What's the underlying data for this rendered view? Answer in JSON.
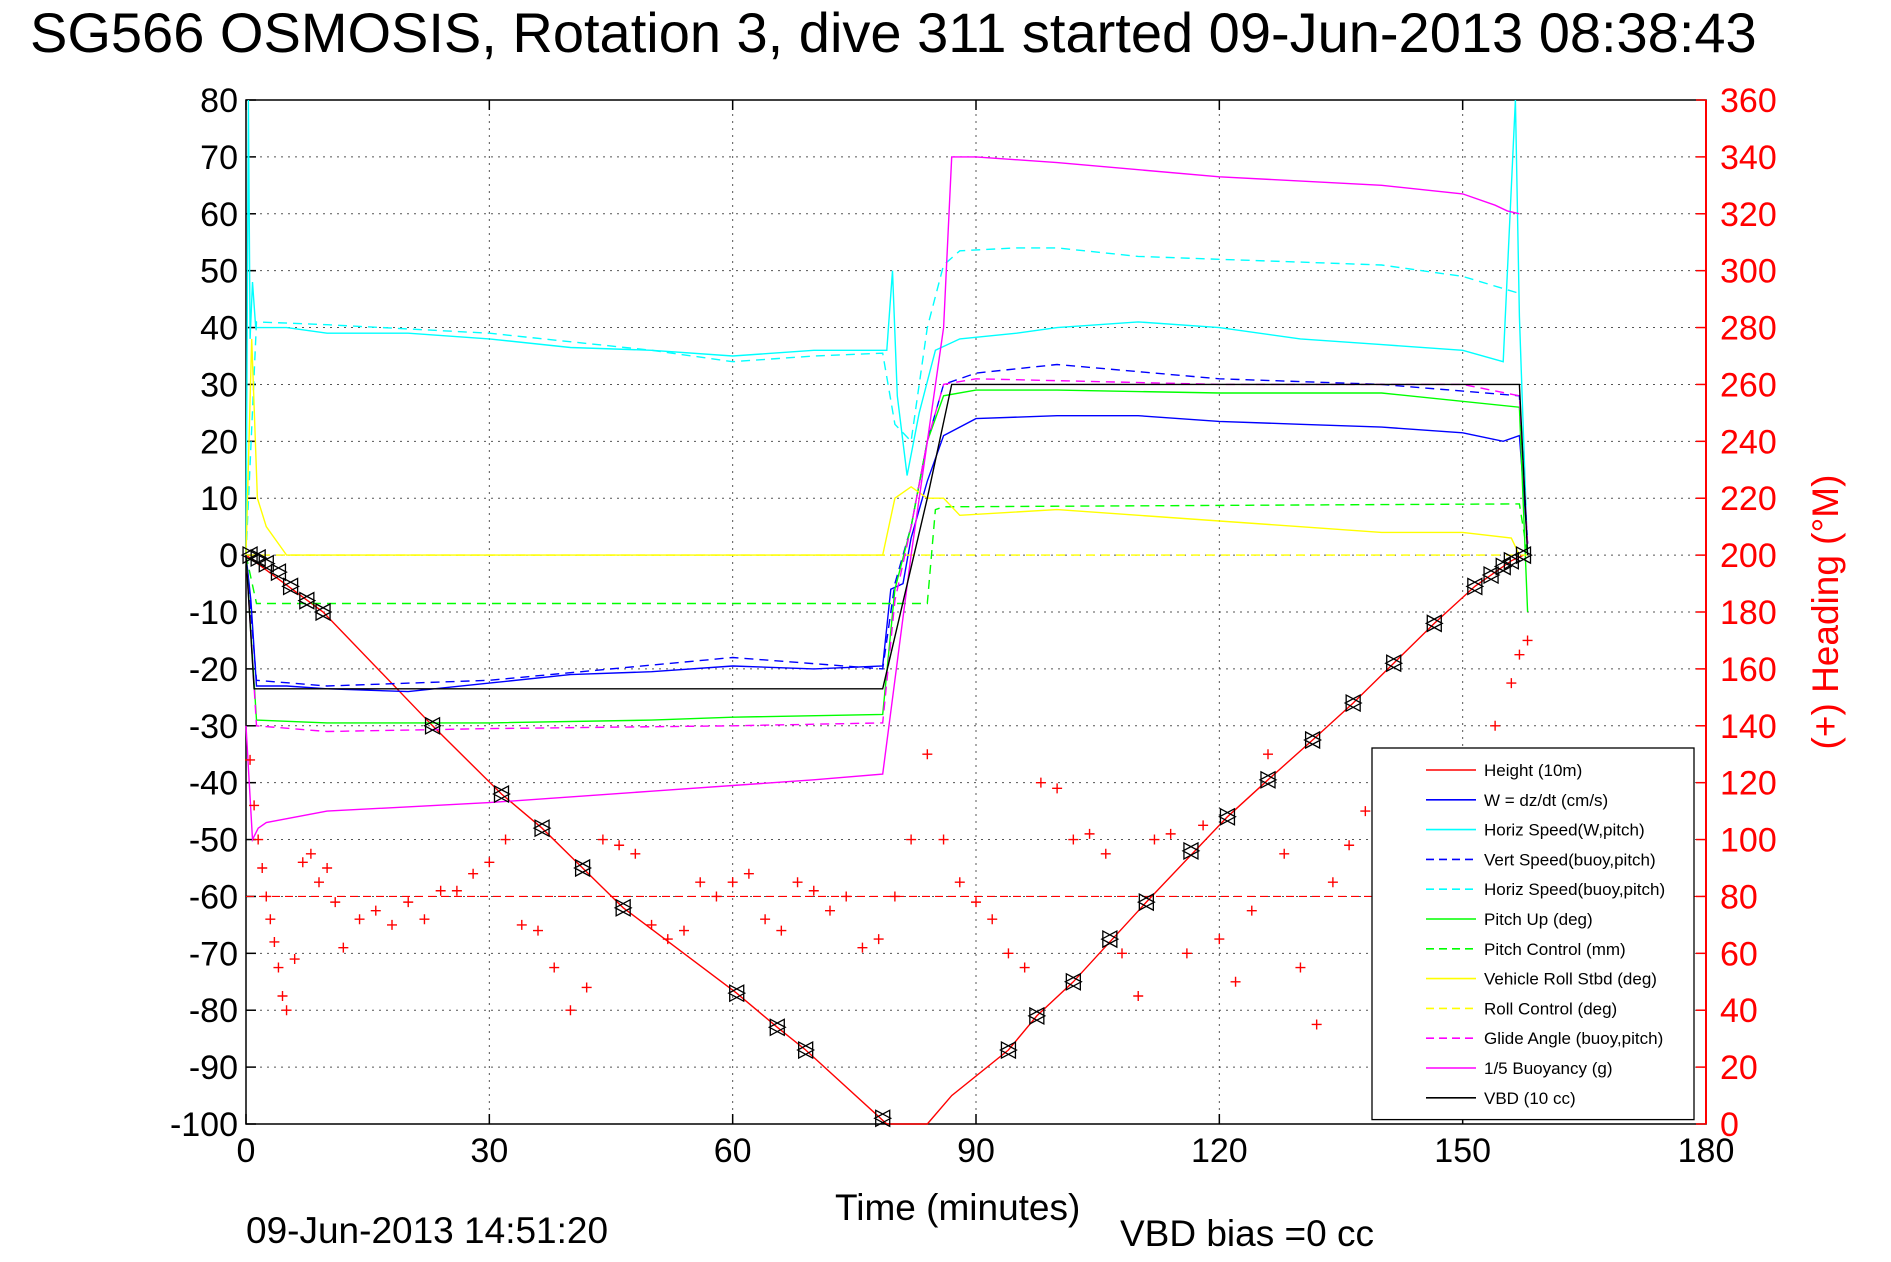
{
  "chart_data": {
    "type": "line",
    "title": "SG566 OSMOSIS, Rotation 3, dive 311 started 09-Jun-2013 08:38:43",
    "xlabel": "Time (minutes)",
    "ylabel_right": "(+) Heading (°M)",
    "footer_date": "09-Jun-2013 14:51:20",
    "footer_bias": "VBD bias =0 cc",
    "xlim": [
      0,
      180
    ],
    "ylim": [
      -100,
      80
    ],
    "ylim_right": [
      0,
      360
    ],
    "grid": true,
    "legend_position": "bottom-right",
    "x_ticks": [
      "0",
      "30",
      "60",
      "90",
      "120",
      "150",
      "180"
    ],
    "y_ticks": [
      "80",
      "70",
      "60",
      "50",
      "40",
      "30",
      "20",
      "10",
      "0",
      "-10",
      "-20",
      "-30",
      "-40",
      "-50",
      "-60",
      "-70",
      "-80",
      "-90",
      "-100"
    ],
    "y_ticks_right": [
      "360",
      "340",
      "320",
      "300",
      "280",
      "260",
      "240",
      "220",
      "200",
      "180",
      "160",
      "140",
      "120",
      "100",
      "80",
      "60",
      "40",
      "20",
      "0"
    ],
    "series": [
      {
        "name": "Height (10m)",
        "color": "#ff0000",
        "style": "solid",
        "x": [
          0,
          9.5,
          23,
          31.5,
          36.5,
          41.5,
          46.5,
          60.5,
          65.5,
          69,
          79,
          84,
          87,
          94,
          97.5,
          102,
          111,
          121,
          126,
          131.5,
          136.5,
          141.5,
          146.5,
          151.5,
          156,
          157.5
        ],
        "y": [
          0,
          -10,
          -30,
          -42,
          -48,
          -55,
          -62,
          -77,
          -83,
          -87,
          -100,
          -100,
          -95,
          -87,
          -81,
          -75,
          -61,
          -46,
          -39.5,
          -32.5,
          -26,
          -19,
          -12,
          -5.5,
          -1,
          0
        ]
      },
      {
        "name": "W = dz/dt (cm/s)",
        "color": "#0000ff",
        "style": "solid",
        "x": [
          0,
          0.6,
          1.3,
          5,
          10,
          20,
          30,
          40,
          50,
          60,
          70,
          78.5,
          79.5,
          81,
          82,
          84,
          86,
          90,
          100,
          110,
          120,
          130,
          140,
          150,
          155,
          157,
          158
        ],
        "y": [
          0,
          -8,
          -23,
          -23,
          -23.5,
          -24,
          -22.5,
          -21,
          -20.5,
          -19.5,
          -20,
          -19.5,
          -6,
          -5,
          3,
          13,
          21,
          24,
          24.5,
          24.5,
          23.5,
          23,
          22.5,
          21.5,
          20,
          21,
          2
        ]
      },
      {
        "name": "Horiz Speed(W,pitch)",
        "color": "#00ffff",
        "style": "solid",
        "x": [
          0,
          0.3,
          0.5,
          0.8,
          1.2,
          5,
          10,
          20,
          30,
          40,
          50,
          60,
          70,
          79,
          79.7,
          80.3,
          81.5,
          83,
          85,
          88,
          95,
          100,
          110,
          120,
          130,
          140,
          150,
          155,
          156.5,
          157,
          158
        ],
        "y": [
          0,
          80,
          38,
          48,
          40,
          40,
          39,
          39,
          38,
          36.5,
          36,
          35,
          36,
          36,
          50,
          28,
          14,
          25,
          36,
          38,
          39,
          40,
          41,
          40,
          38,
          37,
          36,
          34,
          80,
          42,
          0
        ]
      },
      {
        "name": "Vert Speed(buoy,pitch)",
        "color": "#0000ff",
        "style": "dashed",
        "x": [
          0,
          1.3,
          10,
          30,
          60,
          78.5,
          80,
          82,
          84,
          86,
          90,
          100,
          120,
          140,
          157,
          158
        ],
        "y": [
          0,
          -22,
          -23,
          -22,
          -18,
          -20,
          -5,
          5,
          20,
          30,
          32,
          33.5,
          31,
          30,
          28,
          2
        ]
      },
      {
        "name": "Horiz Speed(buoy,pitch)",
        "color": "#00ffff",
        "style": "dashed",
        "x": [
          0,
          1.3,
          10,
          30,
          50,
          60,
          70,
          78.5,
          80,
          82,
          84,
          86,
          88,
          95,
          100,
          110,
          120,
          130,
          140,
          150,
          157
        ],
        "y": [
          0,
          41,
          40.5,
          39,
          36,
          34,
          35,
          35.5,
          23,
          20,
          40,
          51,
          53.5,
          54,
          54,
          52.5,
          52,
          51.5,
          51,
          49,
          46
        ]
      },
      {
        "name": "Pitch Up (deg)",
        "color": "#00ff00",
        "style": "solid",
        "x": [
          0,
          1.3,
          10,
          30,
          50,
          60,
          78.5,
          80,
          82,
          84,
          86,
          90,
          100,
          120,
          140,
          157,
          158
        ],
        "y": [
          0,
          -29,
          -29.5,
          -29.5,
          -29,
          -28.5,
          -28,
          -6,
          5,
          20,
          28,
          29,
          29,
          28.5,
          28.5,
          26,
          -10
        ]
      },
      {
        "name": "Pitch Control (mm)",
        "color": "#00ff00",
        "style": "dashed",
        "x": [
          0,
          1.3,
          78.5,
          84,
          85,
          86,
          157,
          158
        ],
        "y": [
          0,
          -8.5,
          -8.5,
          -8.5,
          8,
          8.5,
          9,
          0
        ]
      },
      {
        "name": "Vehicle Roll Stbd (deg)",
        "color": "#ffff00",
        "style": "solid",
        "x": [
          0,
          0.7,
          1.4,
          2.5,
          5,
          10,
          20,
          30,
          40,
          50,
          60,
          70,
          78.5,
          80,
          82,
          84,
          86,
          88,
          100,
          120,
          130,
          140,
          150,
          156,
          157
        ],
        "y": [
          0,
          38,
          10,
          5,
          0,
          0,
          0,
          0,
          0,
          0,
          0,
          0,
          0,
          10,
          12,
          10,
          10,
          7,
          8,
          6,
          5,
          4,
          4,
          3,
          0
        ]
      },
      {
        "name": "Roll Control (deg)",
        "color": "#ffff00",
        "style": "dashed",
        "x": [
          0,
          1,
          80,
          82,
          157,
          158
        ],
        "y": [
          0,
          0,
          0,
          0,
          0,
          0
        ]
      },
      {
        "name": "Glide Angle (buoy,pitch)",
        "color": "#ff00ff",
        "style": "dashed",
        "x": [
          0,
          1.3,
          10,
          30,
          60,
          78.5,
          80,
          82,
          84,
          86,
          90,
          120,
          150,
          157,
          158
        ],
        "y": [
          0,
          -30,
          -31,
          -30.5,
          -30,
          -29.5,
          -8,
          5,
          20,
          30,
          31,
          30,
          30,
          28,
          2
        ]
      },
      {
        "name": "1/5 Buoyancy (g)",
        "color": "#ff00ff",
        "style": "solid",
        "x": [
          0,
          0.8,
          1.5,
          2.5,
          10,
          30,
          50,
          70,
          78.5,
          82,
          86,
          87,
          90,
          100,
          120,
          140,
          150,
          154,
          155.5,
          157
        ],
        "y": [
          -30,
          -50,
          -48,
          -47,
          -45,
          -43.5,
          -41.5,
          -39.5,
          -38.5,
          0,
          40,
          70,
          70,
          69,
          66.5,
          65,
          63.5,
          61.5,
          60.5,
          60
        ]
      },
      {
        "name": "VBD (10 cc)",
        "color": "#000000",
        "style": "solid",
        "x": [
          0,
          1,
          78.5,
          84,
          87,
          157,
          158
        ],
        "y": [
          0,
          -23.5,
          -23.5,
          10,
          30,
          30,
          0
        ]
      }
    ],
    "heading_series": {
      "name": "Heading (°M)",
      "color": "#ff0000",
      "marker": "+",
      "axis": "right",
      "x": [
        0.5,
        1,
        1.5,
        2,
        2.5,
        3,
        3.5,
        4,
        4.5,
        5,
        6,
        7,
        8,
        9,
        10,
        11,
        12,
        14,
        16,
        18,
        20,
        22,
        24,
        26,
        28,
        30,
        32,
        34,
        36,
        38,
        40,
        42,
        44,
        46,
        48,
        50,
        52,
        54,
        56,
        58,
        60,
        62,
        64,
        66,
        68,
        70,
        72,
        74,
        76,
        78,
        80,
        82,
        84,
        86,
        88,
        90,
        92,
        94,
        96,
        98,
        100,
        102,
        104,
        106,
        108,
        110,
        112,
        114,
        116,
        118,
        120,
        122,
        124,
        126,
        128,
        130,
        132,
        134,
        136,
        138,
        140,
        142,
        144,
        146,
        148,
        150,
        152,
        154,
        156,
        157,
        158
      ],
      "y": [
        128,
        112,
        100,
        90,
        80,
        72,
        64,
        55,
        45,
        40,
        58,
        92,
        95,
        85,
        90,
        78,
        62,
        72,
        75,
        70,
        78,
        72,
        82,
        82,
        88,
        92,
        100,
        70,
        68,
        55,
        40,
        48,
        100,
        98,
        95,
        70,
        65,
        68,
        85,
        80,
        85,
        88,
        72,
        68,
        85,
        82,
        75,
        80,
        62,
        65,
        80,
        100,
        130,
        100,
        85,
        78,
        72,
        60,
        55,
        120,
        118,
        100,
        102,
        95,
        60,
        45,
        100,
        102,
        60,
        105,
        65,
        50,
        75,
        130,
        95,
        55,
        35,
        85,
        98,
        110,
        115,
        110,
        120,
        130,
        105,
        70,
        50,
        140,
        155,
        165,
        170
      ]
    },
    "heading_reference_dashed_y": 80,
    "markers": {
      "type": "triangles",
      "color": "#000000",
      "x": [
        0.5,
        1.5,
        2.5,
        4,
        5.5,
        7.5,
        9.5,
        23,
        31.5,
        36.5,
        41.5,
        46.5,
        60.5,
        65.5,
        69,
        78.5,
        94,
        97.5,
        102,
        106.5,
        111,
        116.5,
        121,
        126,
        131.5,
        136.5,
        141.5,
        146.5,
        151.5,
        153.5,
        155,
        156,
        157.5
      ],
      "y": [
        0,
        -0.5,
        -1.5,
        -3,
        -5.5,
        -8,
        -10,
        -30,
        -42,
        -48,
        -55,
        -62,
        -77,
        -83,
        -87,
        -99,
        -87,
        -81,
        -75,
        -67.5,
        -61,
        -52,
        -46,
        -39.5,
        -32.5,
        -26,
        -19,
        -12,
        -5.5,
        -3.5,
        -2,
        -1,
        0
      ]
    }
  }
}
